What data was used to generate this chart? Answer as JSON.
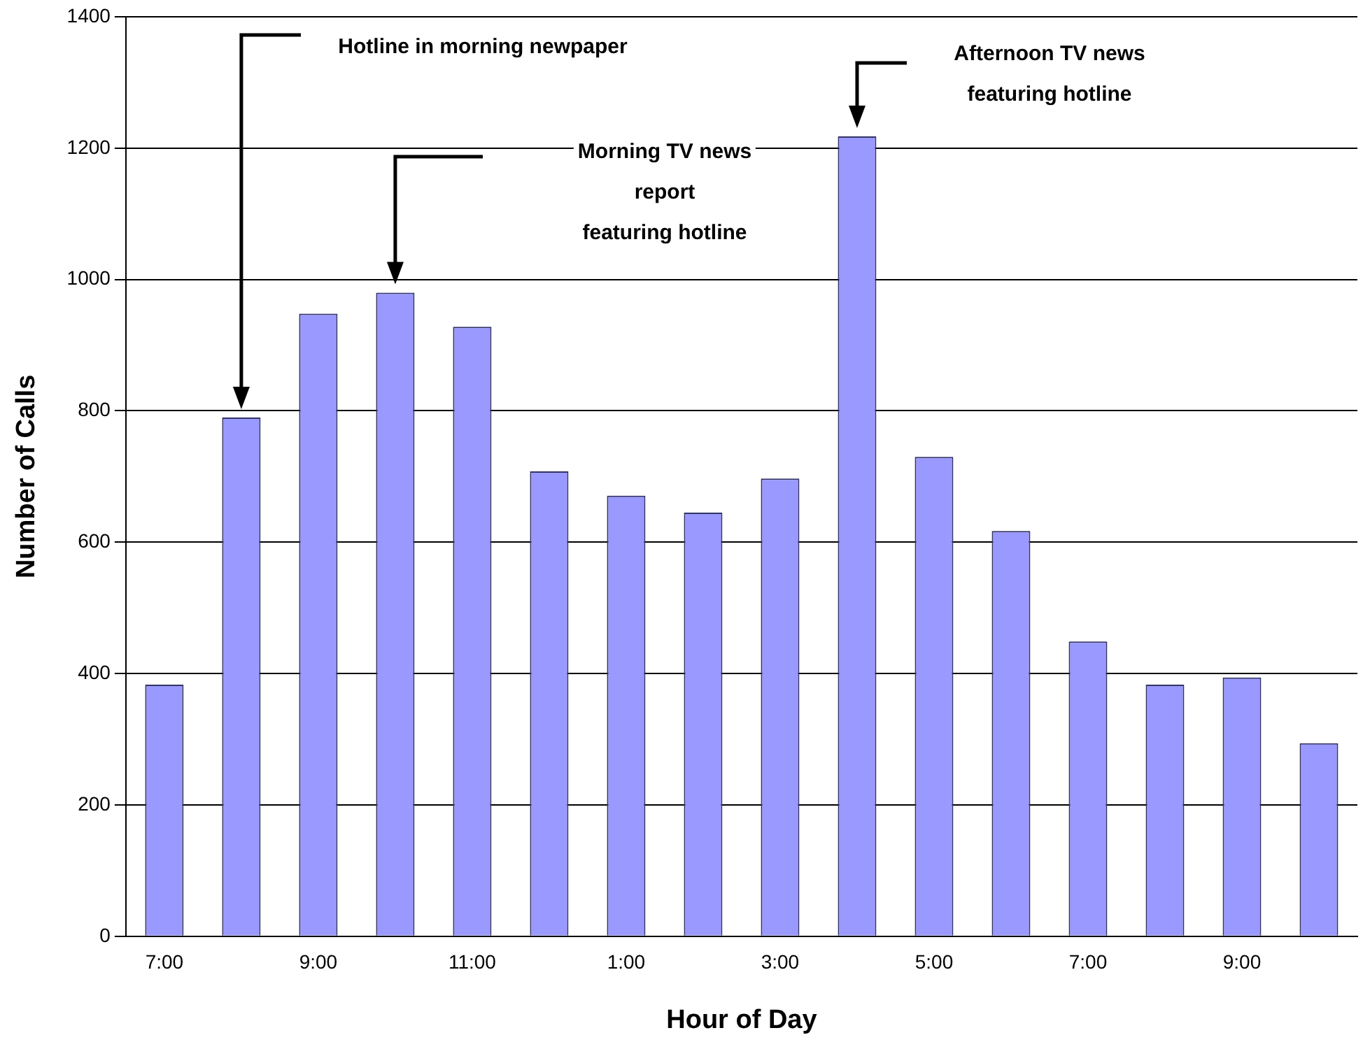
{
  "chart_data": {
    "type": "bar",
    "xlabel": "Hour of Day",
    "ylabel": "Number of Calls",
    "categories": [
      "7:00",
      null,
      "9:00",
      null,
      "11:00",
      null,
      "1:00",
      null,
      "3:00",
      null,
      "5:00",
      null,
      "7:00",
      null,
      "9:00",
      null
    ],
    "values": [
      383,
      790,
      948,
      980,
      928,
      708,
      671,
      645,
      697,
      1218,
      730,
      617,
      449,
      383,
      394,
      294
    ],
    "color": "#9999ff",
    "ylim": [
      0,
      1400
    ],
    "yticks": [
      0,
      200,
      400,
      600,
      800,
      1000,
      1200,
      1400
    ],
    "grid": "y",
    "legend": false,
    "annotations": [
      "Hotline in morning newpaper",
      "Morning TV news\nreport\nfeaturing hotline",
      "Afternoon TV news\nfeaturing hotline"
    ]
  }
}
